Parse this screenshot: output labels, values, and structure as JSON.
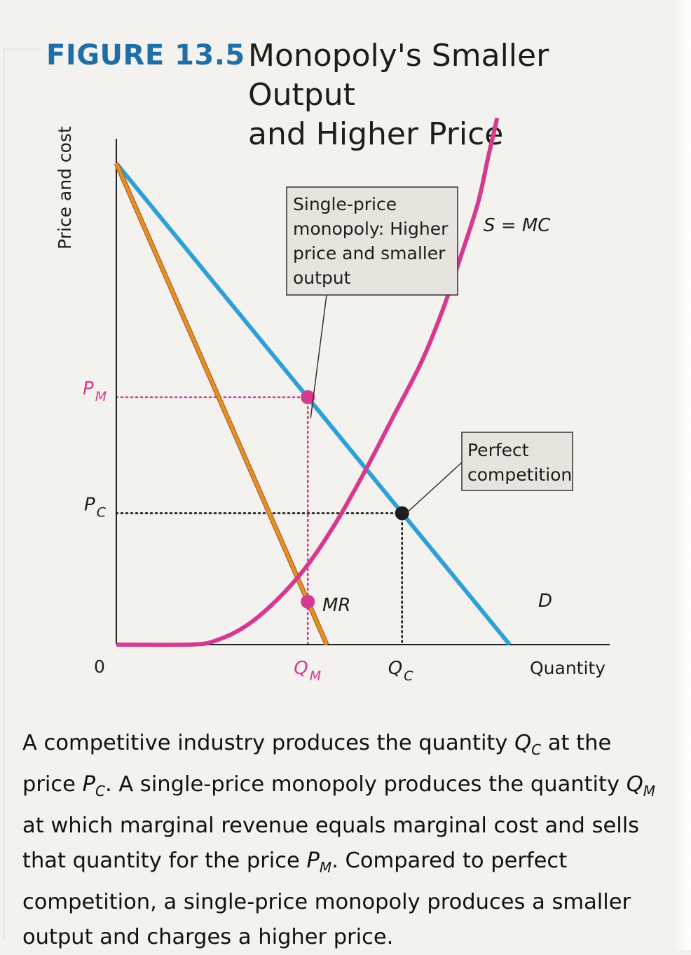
{
  "figure": {
    "number": "FIGURE 13.5",
    "title_line1": "Monopoly's Smaller Output",
    "title_line2": "and Higher Price"
  },
  "chart_data": {
    "type": "line",
    "title": "Monopoly's Smaller Output and Higher Price",
    "ylabel": "Price and cost",
    "xlabel": "Quantity",
    "origin_label": "0",
    "xlim": [
      0,
      100
    ],
    "ylim": [
      0,
      100
    ],
    "grid": false,
    "series": [
      {
        "name": "D",
        "color": "#2f9fd8",
        "x": [
          0,
          91.4
        ],
        "y": [
          100,
          0
        ]
      },
      {
        "name": "MR",
        "color": "#e0932b",
        "x": [
          0,
          48.9
        ],
        "y": [
          100,
          0
        ]
      },
      {
        "name": "S = MC",
        "color": "#d63a8e",
        "x": [
          0,
          17,
          23,
          30,
          37,
          44,
          51,
          58,
          64.5,
          71,
          76,
          80,
          84,
          86.4,
          88.5
        ],
        "y": [
          0,
          0,
          0.8,
          3.8,
          9,
          16,
          25.3,
          36.4,
          47.6,
          58.9,
          69.9,
          80.5,
          91.6,
          101.2,
          109.4
        ]
      }
    ],
    "points": [
      {
        "label": "monopoly point on D",
        "x": 44.5,
        "y": 51.4,
        "color": "#d63a8e"
      },
      {
        "label": "MR = MC",
        "x": 44.5,
        "y": 8.9,
        "color": "#d63a8e"
      },
      {
        "label": "competitive equilibrium",
        "x": 66.4,
        "y": 27.3,
        "color": "#1d1d1d"
      }
    ],
    "guides": [
      {
        "from": "PM",
        "to": "monopoly point on D",
        "color": "#d63a8e"
      },
      {
        "from": "QM",
        "to": "monopoly point on D",
        "color": "#d63a8e"
      },
      {
        "from": "PC",
        "to": "competitive equilibrium",
        "color": "#1d1d1d"
      },
      {
        "from": "QC",
        "to": "competitive equilibrium",
        "color": "#1d1d1d"
      }
    ],
    "axis_marks": {
      "y": [
        {
          "main": "P",
          "sub": "M",
          "color": "#d63a8e"
        },
        {
          "main": "P",
          "sub": "C",
          "color": "#1d1d1d"
        }
      ],
      "x": [
        {
          "main": "Q",
          "sub": "M",
          "color": "#d63a8e"
        },
        {
          "main": "Q",
          "sub": "C",
          "color": "#1d1d1d"
        }
      ]
    },
    "curve_labels": {
      "D": "D",
      "MR": "MR",
      "MC": "S = MC"
    },
    "annotations": [
      {
        "lines": [
          "Single-price",
          "monopoly: Higher",
          "price and smaller",
          "output"
        ]
      },
      {
        "lines": [
          "Perfect",
          "competition"
        ]
      }
    ]
  },
  "caption": {
    "segments": [
      {
        "t": "A competitive industry produces the quantity "
      },
      {
        "t": "Q",
        "i": true
      },
      {
        "t": "C",
        "sub": true
      },
      {
        "t": " at the price "
      },
      {
        "t": "P",
        "i": true
      },
      {
        "t": "C",
        "sub": true
      },
      {
        "t": ". A single-price monopoly produces the quantity "
      },
      {
        "t": "Q",
        "i": true
      },
      {
        "t": "M",
        "sub": true
      },
      {
        "t": " at which marginal revenue equals marginal cost and sells that quantity for the price "
      },
      {
        "t": "P",
        "i": true
      },
      {
        "t": "M",
        "sub": true
      },
      {
        "t": ". Compared to perfect competition, a single-price monopoly produces a smaller output and charges a higher price."
      }
    ]
  }
}
